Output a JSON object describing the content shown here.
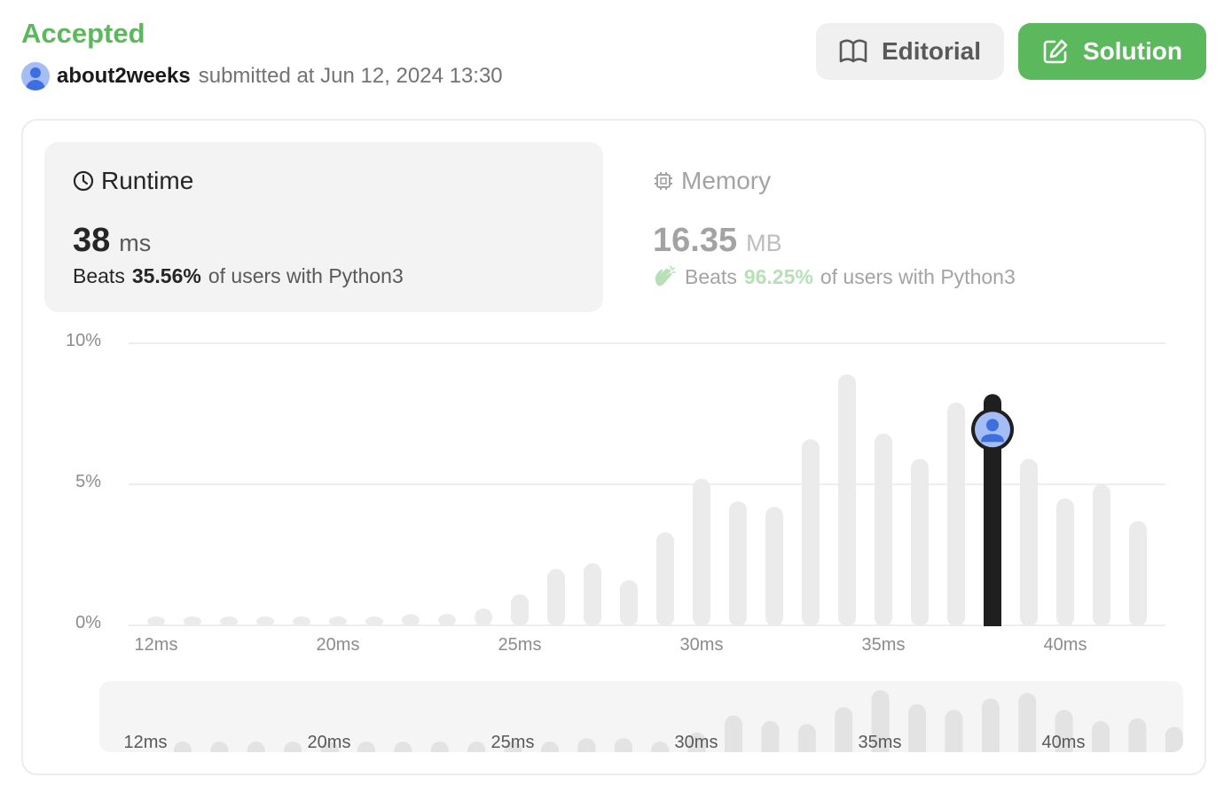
{
  "header": {
    "status": "Accepted",
    "username": "about2weeks",
    "submitted_text": "submitted at Jun 12, 2024 13:30",
    "editorial_label": "Editorial",
    "solution_label": "Solution",
    "status_color": "#5cb85c"
  },
  "runtime": {
    "title": "Runtime",
    "value": "38",
    "unit": "ms",
    "beats_prefix": "Beats",
    "beats_pct": "35.56%",
    "beats_suffix": "of users with Python3"
  },
  "memory": {
    "title": "Memory",
    "value": "16.35",
    "unit": "MB",
    "beats_prefix": "Beats",
    "beats_pct": "96.25%",
    "beats_suffix": "of users with Python3"
  },
  "chart_data": {
    "type": "bar",
    "ylim": [
      0,
      10
    ],
    "yticks": [
      "10%",
      "5%",
      "0%"
    ],
    "xticks": [
      "12ms",
      "20ms",
      "25ms",
      "30ms",
      "35ms",
      "40ms"
    ],
    "values": [
      0.1,
      0.1,
      0.1,
      0.1,
      0.1,
      0.1,
      0.1,
      0.4,
      0.4,
      0.6,
      1.1,
      2.0,
      2.2,
      1.6,
      3.3,
      5.2,
      4.4,
      4.2,
      6.6,
      8.9,
      6.8,
      5.9,
      7.9,
      8.2,
      5.9,
      4.5,
      5.0,
      3.7
    ],
    "highlight_index": 23,
    "highlight_label": "38ms",
    "mini_values": [
      0.2,
      0.2,
      0.2,
      0.2,
      0.2,
      0.2,
      0.2,
      0.2,
      0.2,
      0.2,
      0.3,
      0.5,
      0.5,
      0.3,
      0.7,
      1.3,
      1.1,
      1.0,
      1.6,
      2.2,
      1.7,
      1.5,
      1.9,
      2.1,
      1.5,
      1.1,
      1.2,
      0.9
    ],
    "bar_color": "#ebebeb",
    "highlight_color": "#1f1f1f",
    "grid": true
  }
}
